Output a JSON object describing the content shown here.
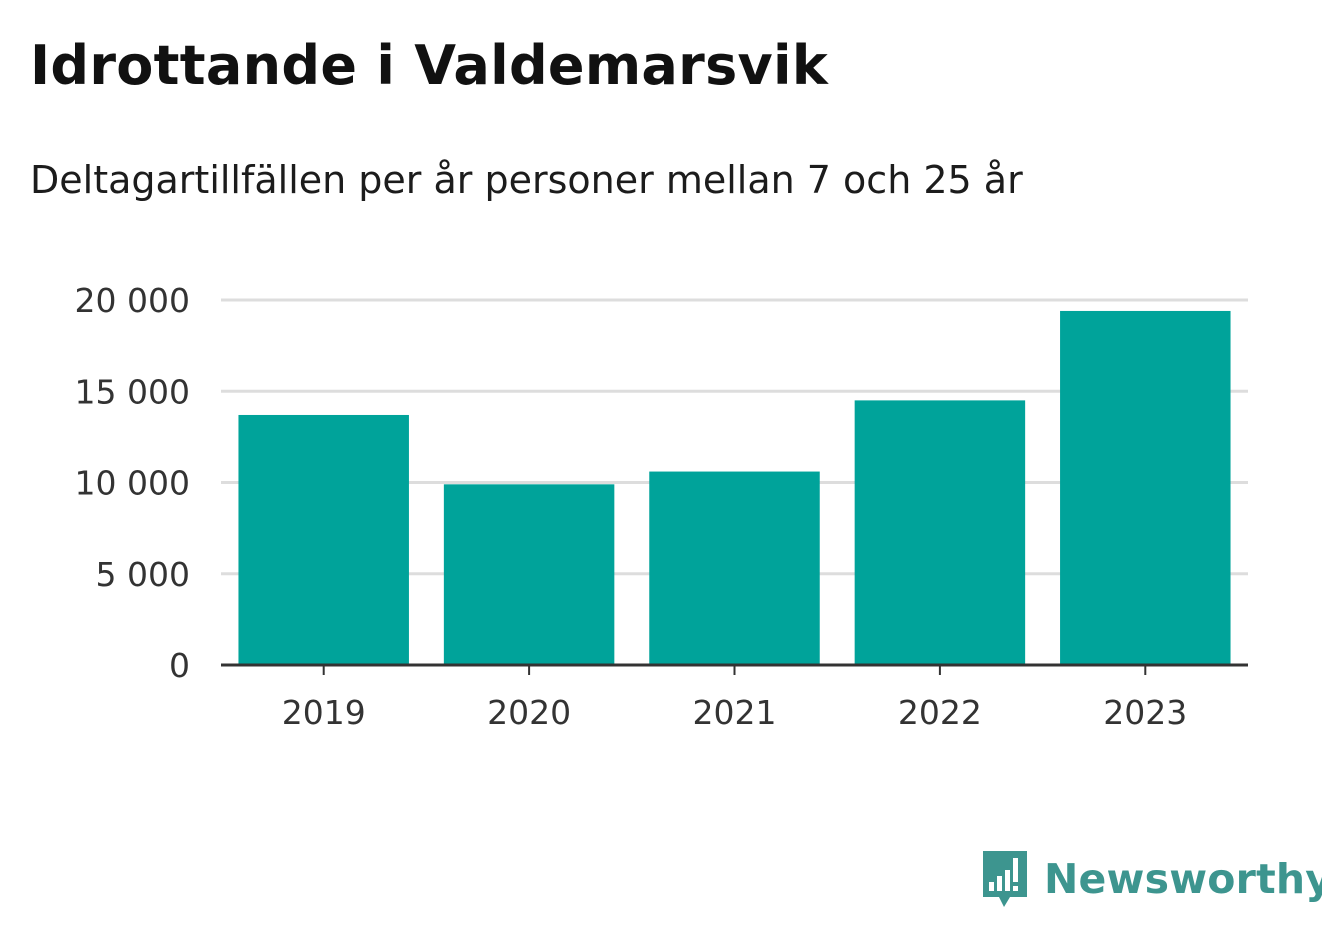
{
  "header": {
    "title": "Idrottande i Valdemarsvik",
    "subtitle": "Deltagartillfällen per år personer mellan 7 och 25 år"
  },
  "chart_data": {
    "type": "bar",
    "categories": [
      "2019",
      "2020",
      "2021",
      "2022",
      "2023"
    ],
    "values": [
      13700,
      9900,
      10600,
      14500,
      19400
    ],
    "ylim": [
      0,
      20000
    ],
    "yticks": [
      0,
      5000,
      10000,
      15000,
      20000
    ],
    "ytick_labels": [
      "0",
      "5 000",
      "10 000",
      "15 000",
      "20 000"
    ],
    "grid": true,
    "colors": {
      "bar": "#00a39a",
      "grid": "#dddddd",
      "axis": "#333333"
    }
  },
  "brand": {
    "name": "Newsworthy",
    "icon": "newsworthy-logo-icon",
    "color": "#3d958f"
  }
}
